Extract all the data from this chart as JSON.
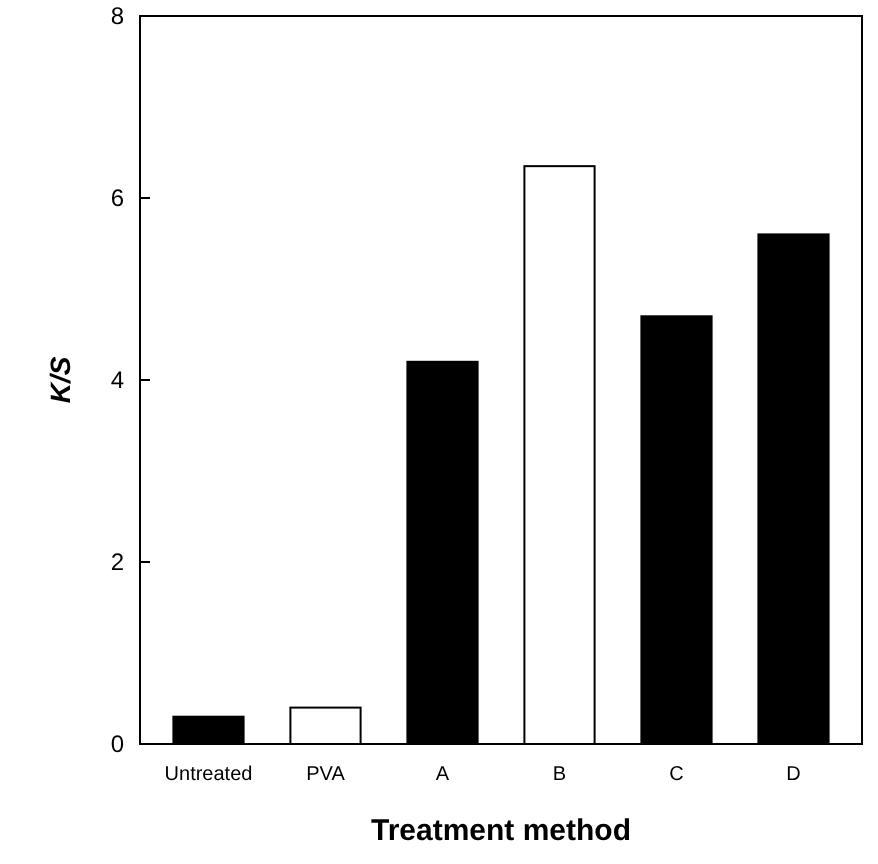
{
  "chart_data": {
    "type": "bar",
    "xlabel": "Treatment method",
    "ylabel": "K/S",
    "categories": [
      "Untreated",
      "PVA",
      "A",
      "B",
      "C",
      "D"
    ],
    "values": [
      0.3,
      0.4,
      4.2,
      6.35,
      4.7,
      5.6
    ],
    "colors": [
      "#000000",
      "#ffffff",
      "#000000",
      "#ffffff",
      "#000000",
      "#000000"
    ],
    "ylim": [
      0,
      8
    ],
    "yticks": [
      0,
      2,
      4,
      6,
      8
    ],
    "grid": false
  }
}
